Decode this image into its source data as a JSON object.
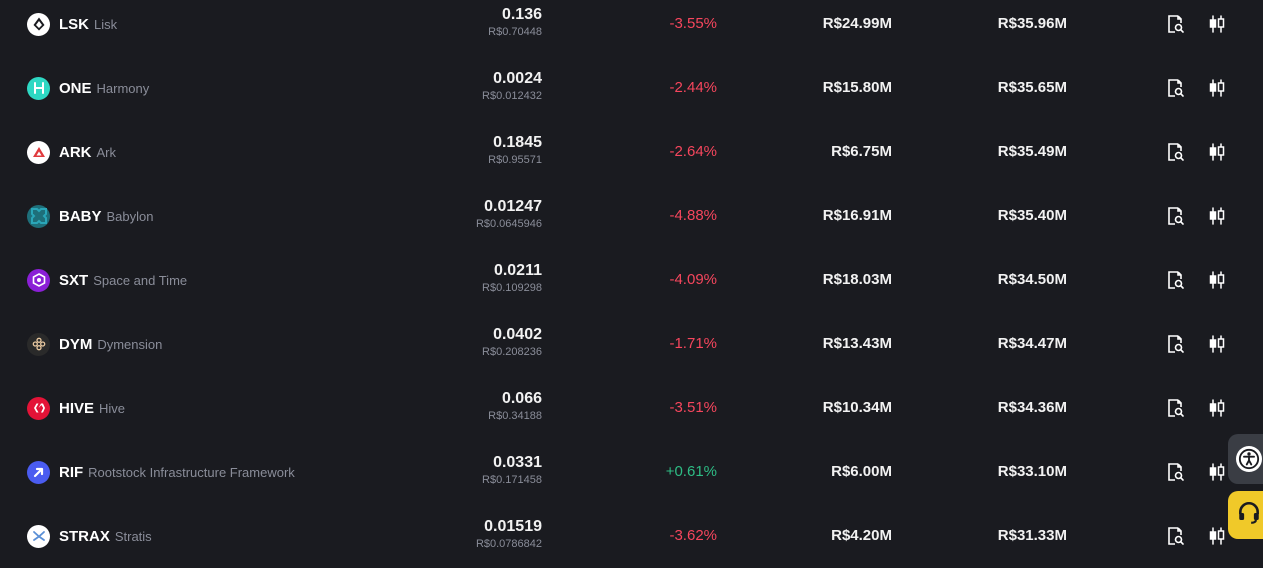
{
  "rows": [
    {
      "symbol": "LSK",
      "name": "Lisk",
      "price": "0.136",
      "price_brl": "R$0.70448",
      "change": "-3.55%",
      "direction": "down",
      "volume": "R$24.99M",
      "market_cap": "R$35.96M",
      "logo_color": "#ffffff",
      "logo_icon": "lisk-icon"
    },
    {
      "symbol": "ONE",
      "name": "Harmony",
      "price": "0.0024",
      "price_brl": "R$0.012432",
      "change": "-2.44%",
      "direction": "down",
      "volume": "R$15.80M",
      "market_cap": "R$35.65M",
      "logo_color": "#2ed8c3",
      "logo_icon": "harmony-icon"
    },
    {
      "symbol": "ARK",
      "name": "Ark",
      "price": "0.1845",
      "price_brl": "R$0.95571",
      "change": "-2.64%",
      "direction": "down",
      "volume": "R$6.75M",
      "market_cap": "R$35.49M",
      "logo_color": "#ffffff",
      "logo_icon": "ark-icon"
    },
    {
      "symbol": "BABY",
      "name": "Babylon",
      "price": "0.01247",
      "price_brl": "R$0.0645946",
      "change": "-4.88%",
      "direction": "down",
      "volume": "R$16.91M",
      "market_cap": "R$35.40M",
      "logo_color": "#1e6f7a",
      "logo_icon": "babylon-icon"
    },
    {
      "symbol": "SXT",
      "name": "Space and Time",
      "price": "0.0211",
      "price_brl": "R$0.109298",
      "change": "-4.09%",
      "direction": "down",
      "volume": "R$18.03M",
      "market_cap": "R$34.50M",
      "logo_color": "#8b1fd6",
      "logo_icon": "space-and-time-icon"
    },
    {
      "symbol": "DYM",
      "name": "Dymension",
      "price": "0.0402",
      "price_brl": "R$0.208236",
      "change": "-1.71%",
      "direction": "down",
      "volume": "R$13.43M",
      "market_cap": "R$34.47M",
      "logo_color": "#2a2a2a",
      "logo_icon": "dymension-icon"
    },
    {
      "symbol": "HIVE",
      "name": "Hive",
      "price": "0.066",
      "price_brl": "R$0.34188",
      "change": "-3.51%",
      "direction": "down",
      "volume": "R$10.34M",
      "market_cap": "R$34.36M",
      "logo_color": "#e31337",
      "logo_icon": "hive-icon"
    },
    {
      "symbol": "RIF",
      "name": "Rootstock Infrastructure Framework",
      "price": "0.0331",
      "price_brl": "R$0.171458",
      "change": "+0.61%",
      "direction": "up",
      "volume": "R$6.00M",
      "market_cap": "R$33.10M",
      "logo_color": "#4a5cf0",
      "logo_icon": "rif-icon"
    },
    {
      "symbol": "STRAX",
      "name": "Stratis",
      "price": "0.01519",
      "price_brl": "R$0.0786842",
      "change": "-3.62%",
      "direction": "down",
      "volume": "R$4.20M",
      "market_cap": "R$31.33M",
      "logo_color": "#ffffff",
      "logo_icon": "stratis-icon"
    }
  ],
  "actions": {
    "detail_icon": "document-search-icon",
    "chart_icon": "candlestick-chart-icon"
  },
  "floating": {
    "accessibility_icon": "accessibility-icon",
    "support_icon": "headset-icon"
  },
  "colors": {
    "background": "#1a1b20",
    "negative": "#f6465d",
    "positive": "#2ebd85",
    "muted": "#8a8d99",
    "support": "#f0c929"
  }
}
